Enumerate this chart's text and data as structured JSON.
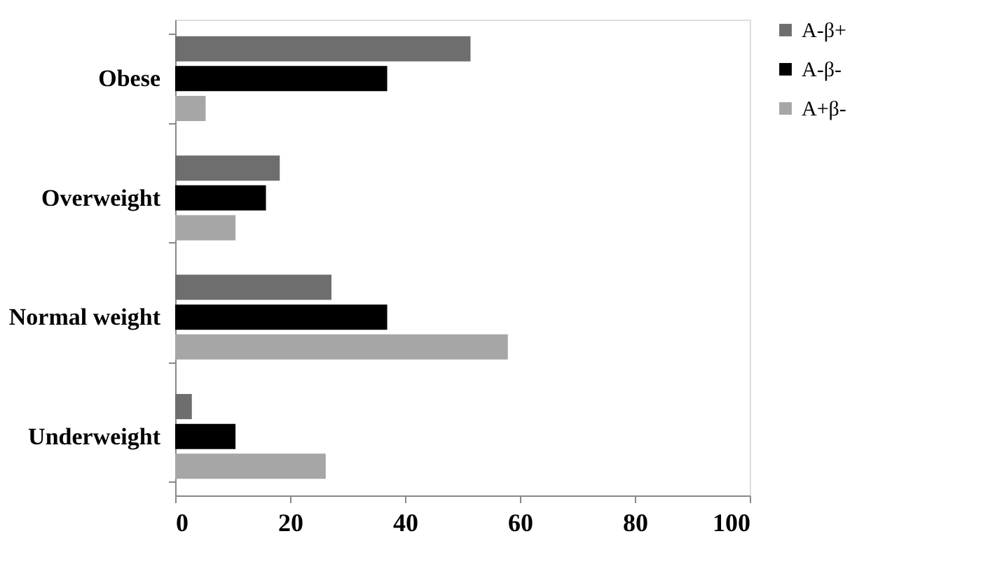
{
  "chart_data": {
    "type": "bar",
    "orientation": "horizontal",
    "categories": [
      "Obese",
      "Overweight",
      "Normal weight",
      "Underweight"
    ],
    "series": [
      {
        "name": "A-β+",
        "color": "#6e6e6e",
        "values": [
          51.4,
          18.2,
          27.2,
          2.9
        ]
      },
      {
        "name": "A-β-",
        "color": "#000000",
        "values": [
          36.9,
          15.8,
          36.9,
          10.5
        ]
      },
      {
        "name": "A+β-",
        "color": "#a6a6a6",
        "values": [
          5.3,
          10.5,
          57.9,
          26.2
        ]
      }
    ],
    "xlim": [
      0,
      100
    ],
    "xticks": [
      0,
      20,
      40,
      60,
      80,
      100
    ],
    "grid": false,
    "legend": "right"
  }
}
